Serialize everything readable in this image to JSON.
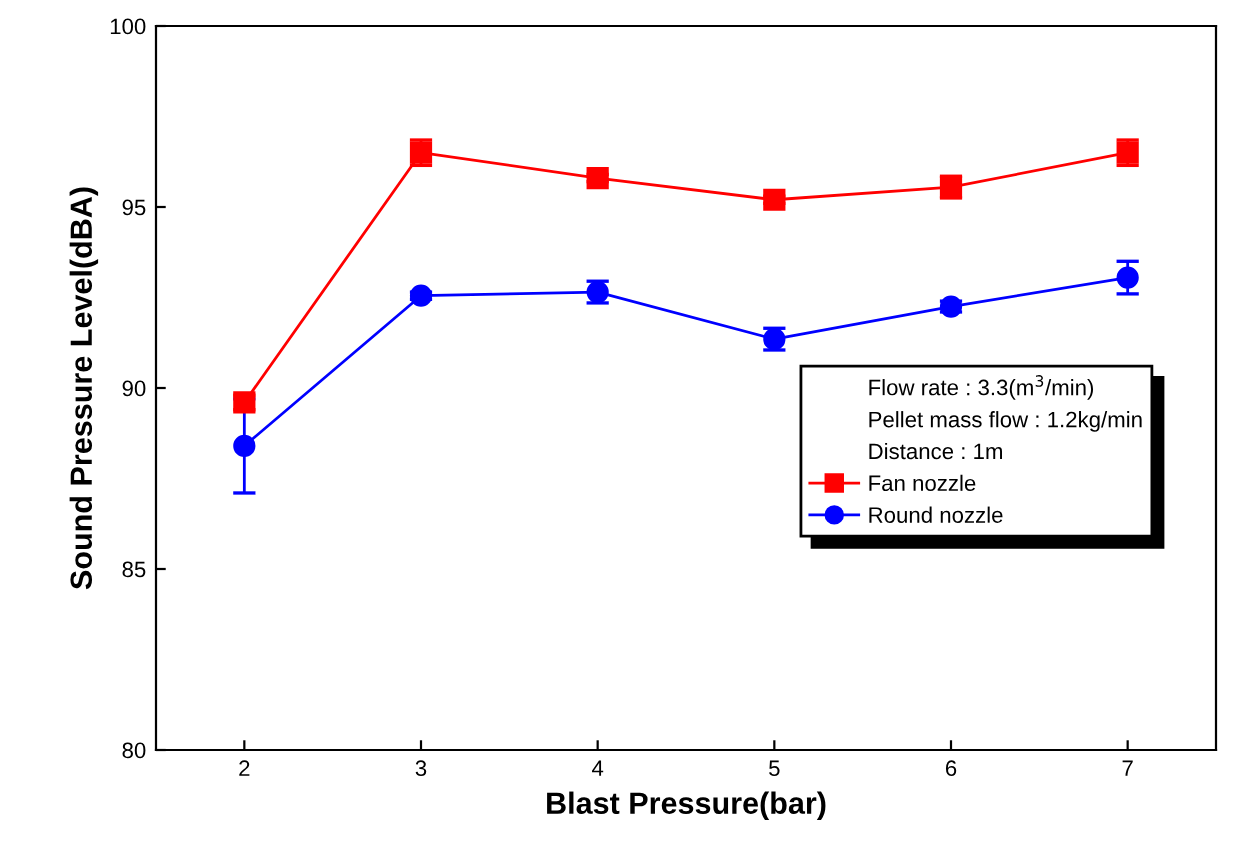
{
  "chart_data": {
    "type": "line",
    "xlabel": "Blast Pressure(bar)",
    "ylabel": "Sound Pressure Level(dBA)",
    "x": [
      2,
      3,
      4,
      5,
      6,
      7
    ],
    "xlim": [
      1.5,
      7.5
    ],
    "xticks": [
      2,
      3,
      4,
      5,
      6,
      7
    ],
    "ylim": [
      80,
      100
    ],
    "yticks": [
      80,
      85,
      90,
      95,
      100
    ],
    "series": [
      {
        "name": "Fan nozzle",
        "color": "#ff0000",
        "marker": "square",
        "values": [
          89.6,
          96.5,
          95.8,
          95.2,
          95.55,
          96.5
        ],
        "errors": [
          0.2,
          0.35,
          0.1,
          0.1,
          0.3,
          0.35
        ]
      },
      {
        "name": "Round nozzle",
        "color": "#0000ff",
        "marker": "circle",
        "values": [
          88.4,
          92.55,
          92.65,
          91.35,
          92.25,
          93.05
        ],
        "errors": [
          1.3,
          0.1,
          0.3,
          0.3,
          0.15,
          0.45
        ]
      }
    ],
    "annotations": [
      "Flow rate : 3.3(m$^{3}$/min)",
      "Pellet mass flow : 1.2kg/min",
      "Distance : 1m"
    ],
    "legend": "bottom right",
    "grid": false
  }
}
